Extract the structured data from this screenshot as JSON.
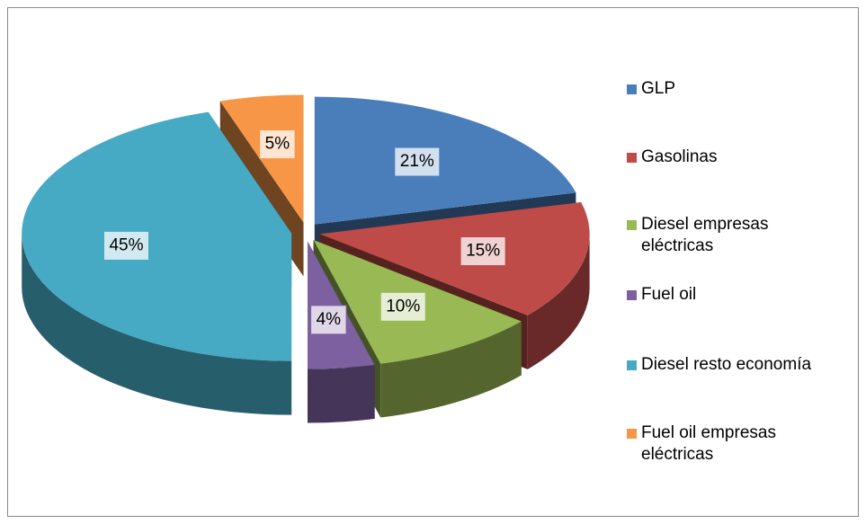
{
  "chart_data": {
    "type": "pie",
    "categories": [
      "GLP",
      "Gasolinas",
      "Diesel empresas eléctricas",
      "Fuel oil",
      "Diesel resto economía",
      "Fuel oil empresas eléctricas"
    ],
    "values": [
      21,
      15,
      10,
      4,
      45,
      5
    ],
    "value_labels": [
      "21%",
      "15%",
      "10%",
      "4%",
      "45%",
      "5%"
    ],
    "colors": [
      "#4a7ebb",
      "#be4b48",
      "#98b954",
      "#7d60a0",
      "#46aac5",
      "#f79646"
    ],
    "legend": "right"
  }
}
